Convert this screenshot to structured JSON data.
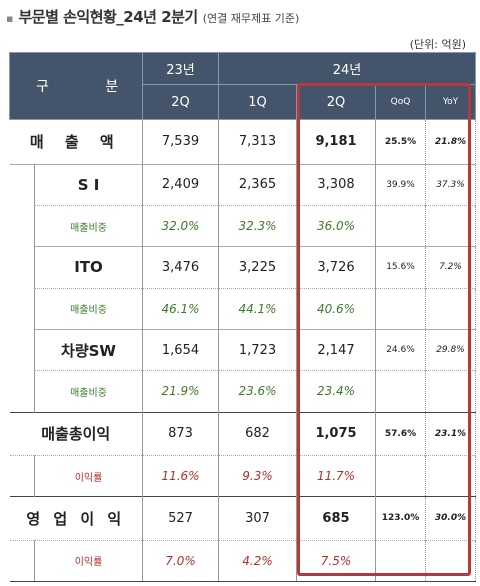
{
  "title": {
    "bullet": "▪",
    "main": "부문별 손익현황_24년 2분기",
    "sub": "(연결 재무제표 기준)"
  },
  "unit": "(단위: 억원)",
  "header": {
    "gubun": "구 분",
    "y23": "23년",
    "y24": "24년",
    "q23_2q": "2Q",
    "q24_1q": "1Q",
    "q24_2q": "2Q",
    "qoq": "QoQ",
    "yoy": "YoY"
  },
  "rows": {
    "revenue": {
      "label": "매 출 액",
      "q23_2q": "7,539",
      "q24_1q": "7,313",
      "q24_2q": "9,181",
      "qoq": "25.5%",
      "yoy": "21.8%"
    },
    "si": {
      "label": "S I",
      "q23_2q": "2,409",
      "q24_1q": "2,365",
      "q24_2q": "3,308",
      "qoq": "39.9%",
      "yoy": "37.3%"
    },
    "si_ratio": {
      "label": "매출비중",
      "q23_2q": "32.0%",
      "q24_1q": "32.3%",
      "q24_2q": "36.0%"
    },
    "ito": {
      "label": "ITO",
      "q23_2q": "3,476",
      "q24_1q": "3,225",
      "q24_2q": "3,726",
      "qoq": "15.6%",
      "yoy": "7.2%"
    },
    "ito_ratio": {
      "label": "매출비중",
      "q23_2q": "46.1%",
      "q24_1q": "44.1%",
      "q24_2q": "40.6%"
    },
    "sw": {
      "label": "차량SW",
      "q23_2q": "1,654",
      "q24_1q": "1,723",
      "q24_2q": "2,147",
      "qoq": "24.6%",
      "yoy": "29.8%"
    },
    "sw_ratio": {
      "label": "매출비중",
      "q23_2q": "21.9%",
      "q24_1q": "23.6%",
      "q24_2q": "23.4%"
    },
    "gross": {
      "label": "매출총이익",
      "q23_2q": "873",
      "q24_1q": "682",
      "q24_2q": "1,075",
      "qoq": "57.6%",
      "yoy": "23.1%"
    },
    "gross_ratio": {
      "label": "이익률",
      "q23_2q": "11.6%",
      "q24_1q": "9.3%",
      "q24_2q": "11.7%"
    },
    "op": {
      "label": "영 업 이 익",
      "q23_2q": "527",
      "q24_1q": "307",
      "q24_2q": "685",
      "qoq": "123.0%",
      "yoy": "30.0%"
    },
    "op_ratio": {
      "label": "이익률",
      "q23_2q": "7.0%",
      "q24_1q": "4.2%",
      "q24_2q": "7.5%"
    }
  },
  "colors": {
    "header_bg": "#44546a",
    "ratio_green": "#3f7a2a",
    "ratio_red": "#b03030",
    "highlight": "#b23a3a"
  }
}
